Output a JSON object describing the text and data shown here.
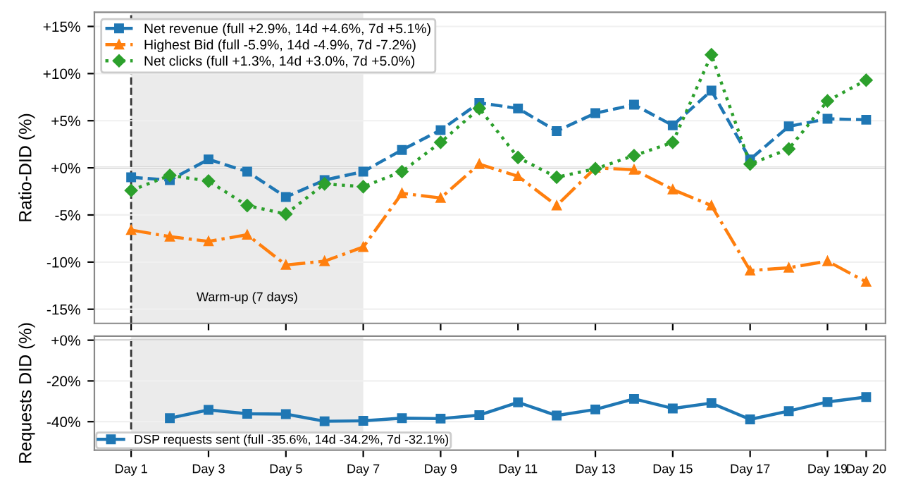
{
  "chart_data": [
    {
      "type": "line",
      "ylabel": "Ratio-DID (%)",
      "categories": [
        "Day 1",
        null,
        "Day 3",
        null,
        "Day 5",
        null,
        "Day 7",
        null,
        "Day 9",
        null,
        "Day 11",
        null,
        "Day 13",
        null,
        "Day 15",
        null,
        "Day 17",
        null,
        "Day 19",
        "Day 20"
      ],
      "series": [
        {
          "name": "Net revenue (full +2.9%, 14d +4.6%, 7d +5.1%)",
          "color": "#1f77b4",
          "marker": "square",
          "line_style": "dashed",
          "values": [
            -1.0,
            -1.3,
            0.9,
            -0.4,
            -3.1,
            -1.3,
            -0.4,
            1.9,
            4.0,
            6.9,
            6.3,
            3.9,
            5.8,
            6.7,
            4.5,
            8.2,
            0.9,
            4.4,
            5.2,
            5.1
          ]
        },
        {
          "name": "Highest Bid (full -5.9%, 14d -4.9%, 7d -7.2%)",
          "color": "#ff7f0e",
          "marker": "triangle",
          "line_style": "dashdot",
          "values": [
            -6.6,
            -7.3,
            -7.8,
            -7.1,
            -10.3,
            -9.9,
            -8.4,
            -2.7,
            -3.2,
            0.4,
            -0.9,
            -4.0,
            0.0,
            -0.2,
            -2.3,
            -4.0,
            -10.9,
            -10.6,
            -9.9,
            -12.1
          ]
        },
        {
          "name": "Net clicks (full +1.3%, 14d +3.0%, 7d +5.0%)",
          "color": "#2ca02c",
          "marker": "diamond",
          "line_style": "dotted",
          "values": [
            -2.4,
            -0.8,
            -1.4,
            -4.0,
            -4.9,
            -1.7,
            -2.0,
            -0.4,
            2.7,
            6.3,
            1.1,
            -1.0,
            -0.1,
            1.3,
            2.7,
            12.0,
            0.4,
            2.0,
            7.1,
            9.3
          ]
        }
      ],
      "ylim": [
        -16.5,
        16.5
      ],
      "yticks": [
        {
          "value": -15,
          "label": "-15%"
        },
        {
          "value": -10,
          "label": "-10%"
        },
        {
          "value": -5,
          "label": "-5%"
        },
        {
          "value": 0,
          "label": "+0%"
        },
        {
          "value": 5,
          "label": "+5%"
        },
        {
          "value": 10,
          "label": "+10%"
        },
        {
          "value": 15,
          "label": "+15%"
        }
      ],
      "tick_labels": "y",
      "grid": "y",
      "legend": "top left",
      "bands": [
        {
          "axis": "x",
          "from": "Day 1",
          "to": "Day 7",
          "label": "Warm-up (7 days)",
          "color": "#ebebeb"
        }
      ],
      "ref_lines": [
        {
          "axis": "x",
          "value": "Day 1",
          "color": "#333333",
          "line_style": "dashed"
        },
        {
          "axis": "y",
          "value": 0,
          "color": "#999999",
          "line_style": "solid"
        }
      ]
    },
    {
      "type": "line",
      "ylabel": "Requests DID (%)",
      "categories": [
        "Day 1",
        null,
        "Day 3",
        null,
        "Day 5",
        null,
        "Day 7",
        null,
        "Day 9",
        null,
        "Day 11",
        null,
        "Day 13",
        null,
        "Day 15",
        null,
        "Day 17",
        null,
        "Day 19",
        "Day 20"
      ],
      "series": [
        {
          "name": "DSP requests sent (full -35.6%, 14d -34.2%, 7d -32.1%)",
          "color": "#1f77b4",
          "marker": "square",
          "line_style": "solid",
          "values": [
            null,
            -38.3,
            -34.2,
            -36.1,
            -36.3,
            -39.8,
            -39.6,
            -38.3,
            -38.5,
            -36.8,
            -30.5,
            -37.0,
            -34.0,
            -28.8,
            -33.5,
            -30.9,
            -38.9,
            -34.8,
            -30.3,
            -27.9
          ]
        }
      ],
      "ylim": [
        -54,
        2
      ],
      "yticks": [
        {
          "value": -40,
          "label": "-40%"
        },
        {
          "value": -20,
          "label": "-20%"
        },
        {
          "value": 0,
          "label": "+0%"
        }
      ],
      "grid": "y",
      "legend": "bottom left",
      "bands": [
        {
          "axis": "x",
          "from": "Day 1",
          "to": "Day 7",
          "color": "#ebebeb"
        }
      ],
      "ref_lines": [
        {
          "axis": "x",
          "value": "Day 1",
          "color": "#333333",
          "line_style": "dashed"
        },
        {
          "axis": "y",
          "value": 0,
          "color": "#999999",
          "line_style": "solid"
        }
      ]
    }
  ]
}
